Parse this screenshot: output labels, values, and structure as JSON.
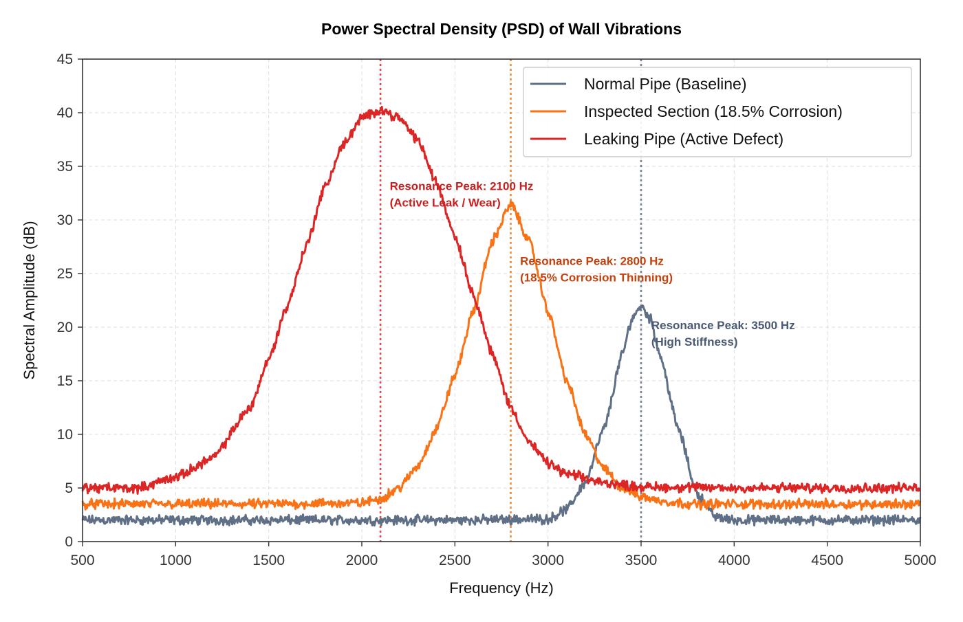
{
  "chart_data": {
    "type": "line",
    "title": "Power Spectral Density (PSD) of Wall Vibrations",
    "xlabel": "Frequency (Hz)",
    "ylabel": "Spectral Amplitude (dB)",
    "xlim": [
      500,
      5000
    ],
    "ylim": [
      0,
      45
    ],
    "xticks": [
      500,
      1000,
      1500,
      2000,
      2500,
      3000,
      3500,
      4000,
      4500,
      5000
    ],
    "yticks": [
      0,
      5,
      10,
      15,
      20,
      25,
      30,
      35,
      40,
      45
    ],
    "grid": true,
    "legend_position": "top-right",
    "series": [
      {
        "name": "Normal Pipe (Baseline)",
        "color": "#5f6f86",
        "x": [
          500,
          1000,
          1500,
          2000,
          2500,
          3000,
          3100,
          3200,
          3300,
          3400,
          3450,
          3500,
          3550,
          3600,
          3700,
          3800,
          3900,
          4000,
          4500,
          5000
        ],
        "y": [
          2.0,
          2.0,
          2.0,
          2.0,
          2.0,
          2.1,
          3.0,
          5.5,
          10.5,
          17.5,
          20.8,
          22.0,
          20.8,
          17.5,
          10.5,
          4.5,
          2.3,
          2.0,
          2.0,
          2.0
        ]
      },
      {
        "name": "Inspected Section (18.5% Corrosion)",
        "color": "#f97316",
        "x": [
          500,
          1000,
          1500,
          2000,
          2100,
          2200,
          2300,
          2400,
          2500,
          2600,
          2700,
          2800,
          2900,
          3000,
          3100,
          3200,
          3300,
          3400,
          3500,
          3600,
          3700,
          3800,
          4000,
          4500,
          5000
        ],
        "y": [
          3.5,
          3.5,
          3.5,
          3.6,
          4.0,
          5.0,
          7.0,
          10.5,
          15.5,
          21.5,
          28.0,
          31.5,
          28.0,
          21.5,
          15.0,
          10.0,
          6.8,
          5.0,
          4.2,
          3.8,
          3.6,
          3.5,
          3.5,
          3.5,
          3.5
        ]
      },
      {
        "name": "Leaking Pipe (Active Defect)",
        "color": "#dc2626",
        "x": [
          500,
          800,
          1000,
          1200,
          1400,
          1500,
          1600,
          1700,
          1800,
          1900,
          2000,
          2100,
          2200,
          2300,
          2400,
          2500,
          2600,
          2700,
          2800,
          2900,
          3000,
          3100,
          3300,
          3500,
          4000,
          4500,
          5000
        ],
        "y": [
          5.0,
          5.0,
          6.0,
          7.8,
          12.5,
          17.0,
          22.0,
          27.5,
          33.0,
          37.0,
          39.5,
          40.3,
          39.5,
          37.5,
          33.5,
          28.5,
          23.0,
          17.5,
          12.5,
          9.2,
          7.3,
          6.3,
          5.5,
          5.1,
          5.0,
          5.0,
          5.0
        ]
      }
    ],
    "annotations": [
      {
        "line1": "Resonance Peak: 2100 Hz",
        "line2": "(Active Leak / Wear)",
        "x": 2150,
        "y": 32.8,
        "color": "#c81e1e",
        "vline_x": 2100
      },
      {
        "line1": "Resonance Peak: 2800 Hz",
        "line2": "(18.5% Corrosion Thinning)",
        "x": 2850,
        "y": 25.8,
        "color": "#c2410c",
        "vline_x": 2800
      },
      {
        "line1": "Resonance Peak: 3500 Hz",
        "line2": "(High Stiffness)",
        "x": 3555,
        "y": 19.8,
        "color": "#4b5a72",
        "vline_x": 3500
      }
    ],
    "vline_colors": [
      "#dc2626",
      "#f97316",
      "#5f6f86"
    ]
  }
}
